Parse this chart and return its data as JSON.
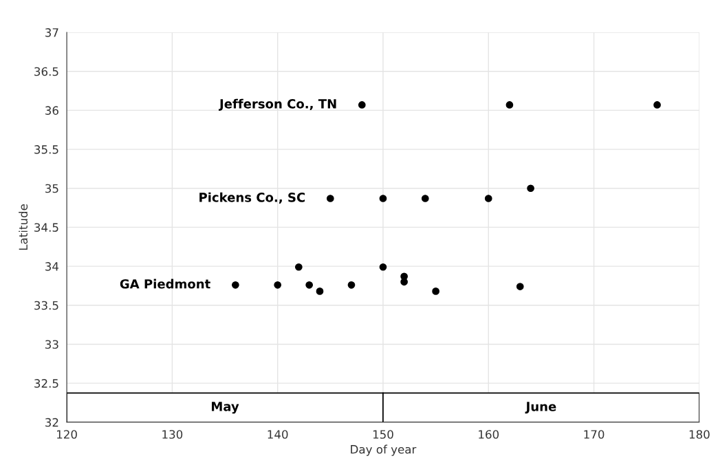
{
  "chart_data": {
    "type": "scatter",
    "xlabel": "Day of year",
    "ylabel": "Latitude",
    "xlim": [
      120,
      180
    ],
    "xticks": [
      120,
      130,
      140,
      150,
      160,
      170,
      180
    ],
    "ylim": [
      32,
      37
    ],
    "yticks": [
      32,
      32.5,
      33,
      33.5,
      34,
      34.5,
      35,
      35.5,
      36,
      36.5,
      37
    ],
    "grid": true,
    "legend": false,
    "marker": "circle",
    "series": [
      {
        "name": "Jefferson Co., TN",
        "color": "#000000",
        "x": [
          148,
          162,
          176
        ],
        "values": [
          36.07,
          36.07,
          36.07
        ]
      },
      {
        "name": "Pickens Co., SC",
        "color": "#000000",
        "x": [
          145,
          150,
          154,
          160,
          164
        ],
        "values": [
          34.87,
          34.87,
          34.87,
          34.87,
          35.0
        ]
      },
      {
        "name": "GA Piedmont",
        "color": "#000000",
        "x": [
          136,
          140,
          142,
          143,
          144,
          147,
          150,
          152,
          152,
          155,
          163
        ],
        "values": [
          33.76,
          33.76,
          33.99,
          33.76,
          33.68,
          33.76,
          33.99,
          33.87,
          33.8,
          33.68,
          33.74
        ]
      }
    ],
    "bands": [
      {
        "axis": "x",
        "from": 120,
        "to": 150,
        "label": "May",
        "color": "#ffffff"
      },
      {
        "axis": "x",
        "from": 150,
        "to": 180,
        "label": "June",
        "color": "#ffffff"
      }
    ]
  }
}
